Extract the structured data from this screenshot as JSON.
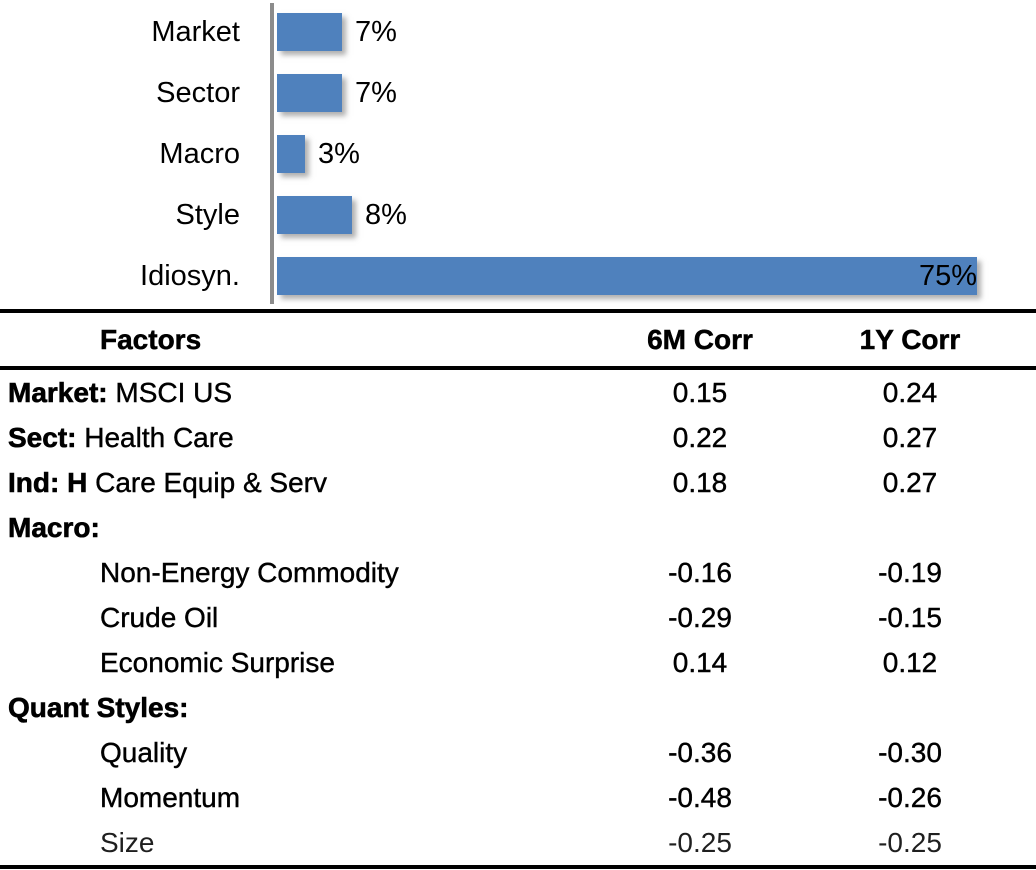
{
  "colors": {
    "bar_blue": "#4F81BD",
    "axis_grey": "#8C8C8C",
    "border_black": "#000000"
  },
  "chart_data": {
    "type": "bar",
    "orientation": "horizontal",
    "title": "",
    "xlabel": "",
    "ylabel": "",
    "categories": [
      "Market",
      "Sector",
      "Macro",
      "Style",
      "Idiosyn."
    ],
    "values": [
      7,
      7,
      3,
      8,
      75
    ],
    "data_labels": [
      "7%",
      "7%",
      "3%",
      "8%",
      "75%"
    ],
    "xlim": [
      0,
      75
    ],
    "grid": false,
    "legend": false,
    "bar_color": "#4F81BD"
  },
  "table": {
    "headers": {
      "factors": "Factors",
      "c6m": "6M Corr",
      "c1y": "1Y Corr"
    },
    "rows": [
      {
        "bold": "Market:",
        "rest": " MSCI US",
        "indent": false,
        "light": false,
        "c6m": "0.15",
        "c1y": "0.24"
      },
      {
        "bold": "Sect:",
        "rest": " Health Care",
        "indent": false,
        "light": false,
        "c6m": "0.22",
        "c1y": "0.27"
      },
      {
        "bold": "Ind: H",
        "rest": " Care Equip & Serv",
        "indent": false,
        "light": false,
        "c6m": "0.18",
        "c1y": "0.27"
      },
      {
        "bold": "Macro:",
        "rest": "",
        "indent": false,
        "light": false,
        "c6m": "",
        "c1y": ""
      },
      {
        "bold": "",
        "rest": "Non-Energy Commodity",
        "indent": true,
        "light": false,
        "c6m": "-0.16",
        "c1y": "-0.19"
      },
      {
        "bold": "",
        "rest": "Crude Oil",
        "indent": true,
        "light": false,
        "c6m": "-0.29",
        "c1y": "-0.15"
      },
      {
        "bold": "",
        "rest": "Economic Surprise",
        "indent": true,
        "light": false,
        "c6m": "0.14",
        "c1y": "0.12"
      },
      {
        "bold": "Quant Styles:",
        "rest": "",
        "indent": false,
        "light": false,
        "c6m": "",
        "c1y": ""
      },
      {
        "bold": "",
        "rest": "Quality",
        "indent": true,
        "light": false,
        "c6m": "-0.36",
        "c1y": "-0.30"
      },
      {
        "bold": "",
        "rest": "Momentum",
        "indent": true,
        "light": false,
        "c6m": "-0.48",
        "c1y": "-0.26"
      },
      {
        "bold": "",
        "rest": "Size",
        "indent": true,
        "light": true,
        "c6m": "-0.25",
        "c1y": "-0.25"
      }
    ]
  }
}
